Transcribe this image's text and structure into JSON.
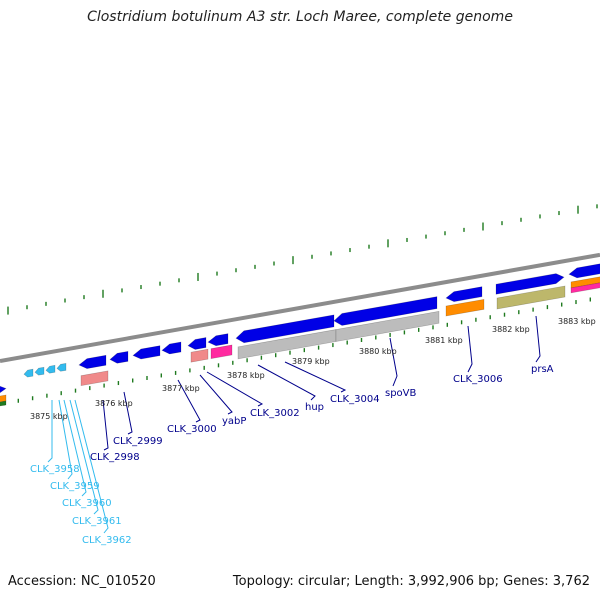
{
  "header": {
    "title": "Clostridium botulinum A3 str. Loch Maree, complete genome"
  },
  "footer": {
    "accession": "Accession: NC_010520",
    "summary": "Topology: circular; Length: 3,992,906 bp; Genes: 3,762"
  },
  "colors": {
    "cds": "#0000e6",
    "cds_light": "#33bbee",
    "rrna": "#f08a8a",
    "misc": "#ff2aa0",
    "grey": "#bcbcbc",
    "orange": "#ff8c00",
    "olive": "#bdb76b",
    "backbone": "#8c8c8c",
    "tick": "#1f7a1f",
    "label_dark": "#00008b",
    "label_light": "#33bbee"
  },
  "scale": {
    "ticks": [
      {
        "label": "3875 kbp"
      },
      {
        "label": "3876 kbp"
      },
      {
        "label": "3877 kbp"
      },
      {
        "label": "3878 kbp"
      },
      {
        "label": "3879 kbp"
      },
      {
        "label": "3880 kbp"
      },
      {
        "label": "3881 kbp"
      },
      {
        "label": "3882 kbp"
      },
      {
        "label": "3883 kbp"
      }
    ]
  },
  "genes": [
    {
      "label": "CLK_2998",
      "color": "label_dark"
    },
    {
      "label": "CLK_2999",
      "color": "label_dark"
    },
    {
      "label": "CLK_3000",
      "color": "label_dark"
    },
    {
      "label": "yabP",
      "color": "label_dark"
    },
    {
      "label": "CLK_3002",
      "color": "label_dark"
    },
    {
      "label": "hup",
      "color": "label_dark"
    },
    {
      "label": "CLK_3004",
      "color": "label_dark"
    },
    {
      "label": "spoVB",
      "color": "label_dark"
    },
    {
      "label": "CLK_3006",
      "color": "label_dark"
    },
    {
      "label": "prsA",
      "color": "label_dark"
    },
    {
      "label": "CLK_3958",
      "color": "label_light"
    },
    {
      "label": "CLK_3959",
      "color": "label_light"
    },
    {
      "label": "CLK_3960",
      "color": "label_light"
    },
    {
      "label": "CLK_3961",
      "color": "label_light"
    },
    {
      "label": "CLK_3962",
      "color": "label_light"
    }
  ]
}
